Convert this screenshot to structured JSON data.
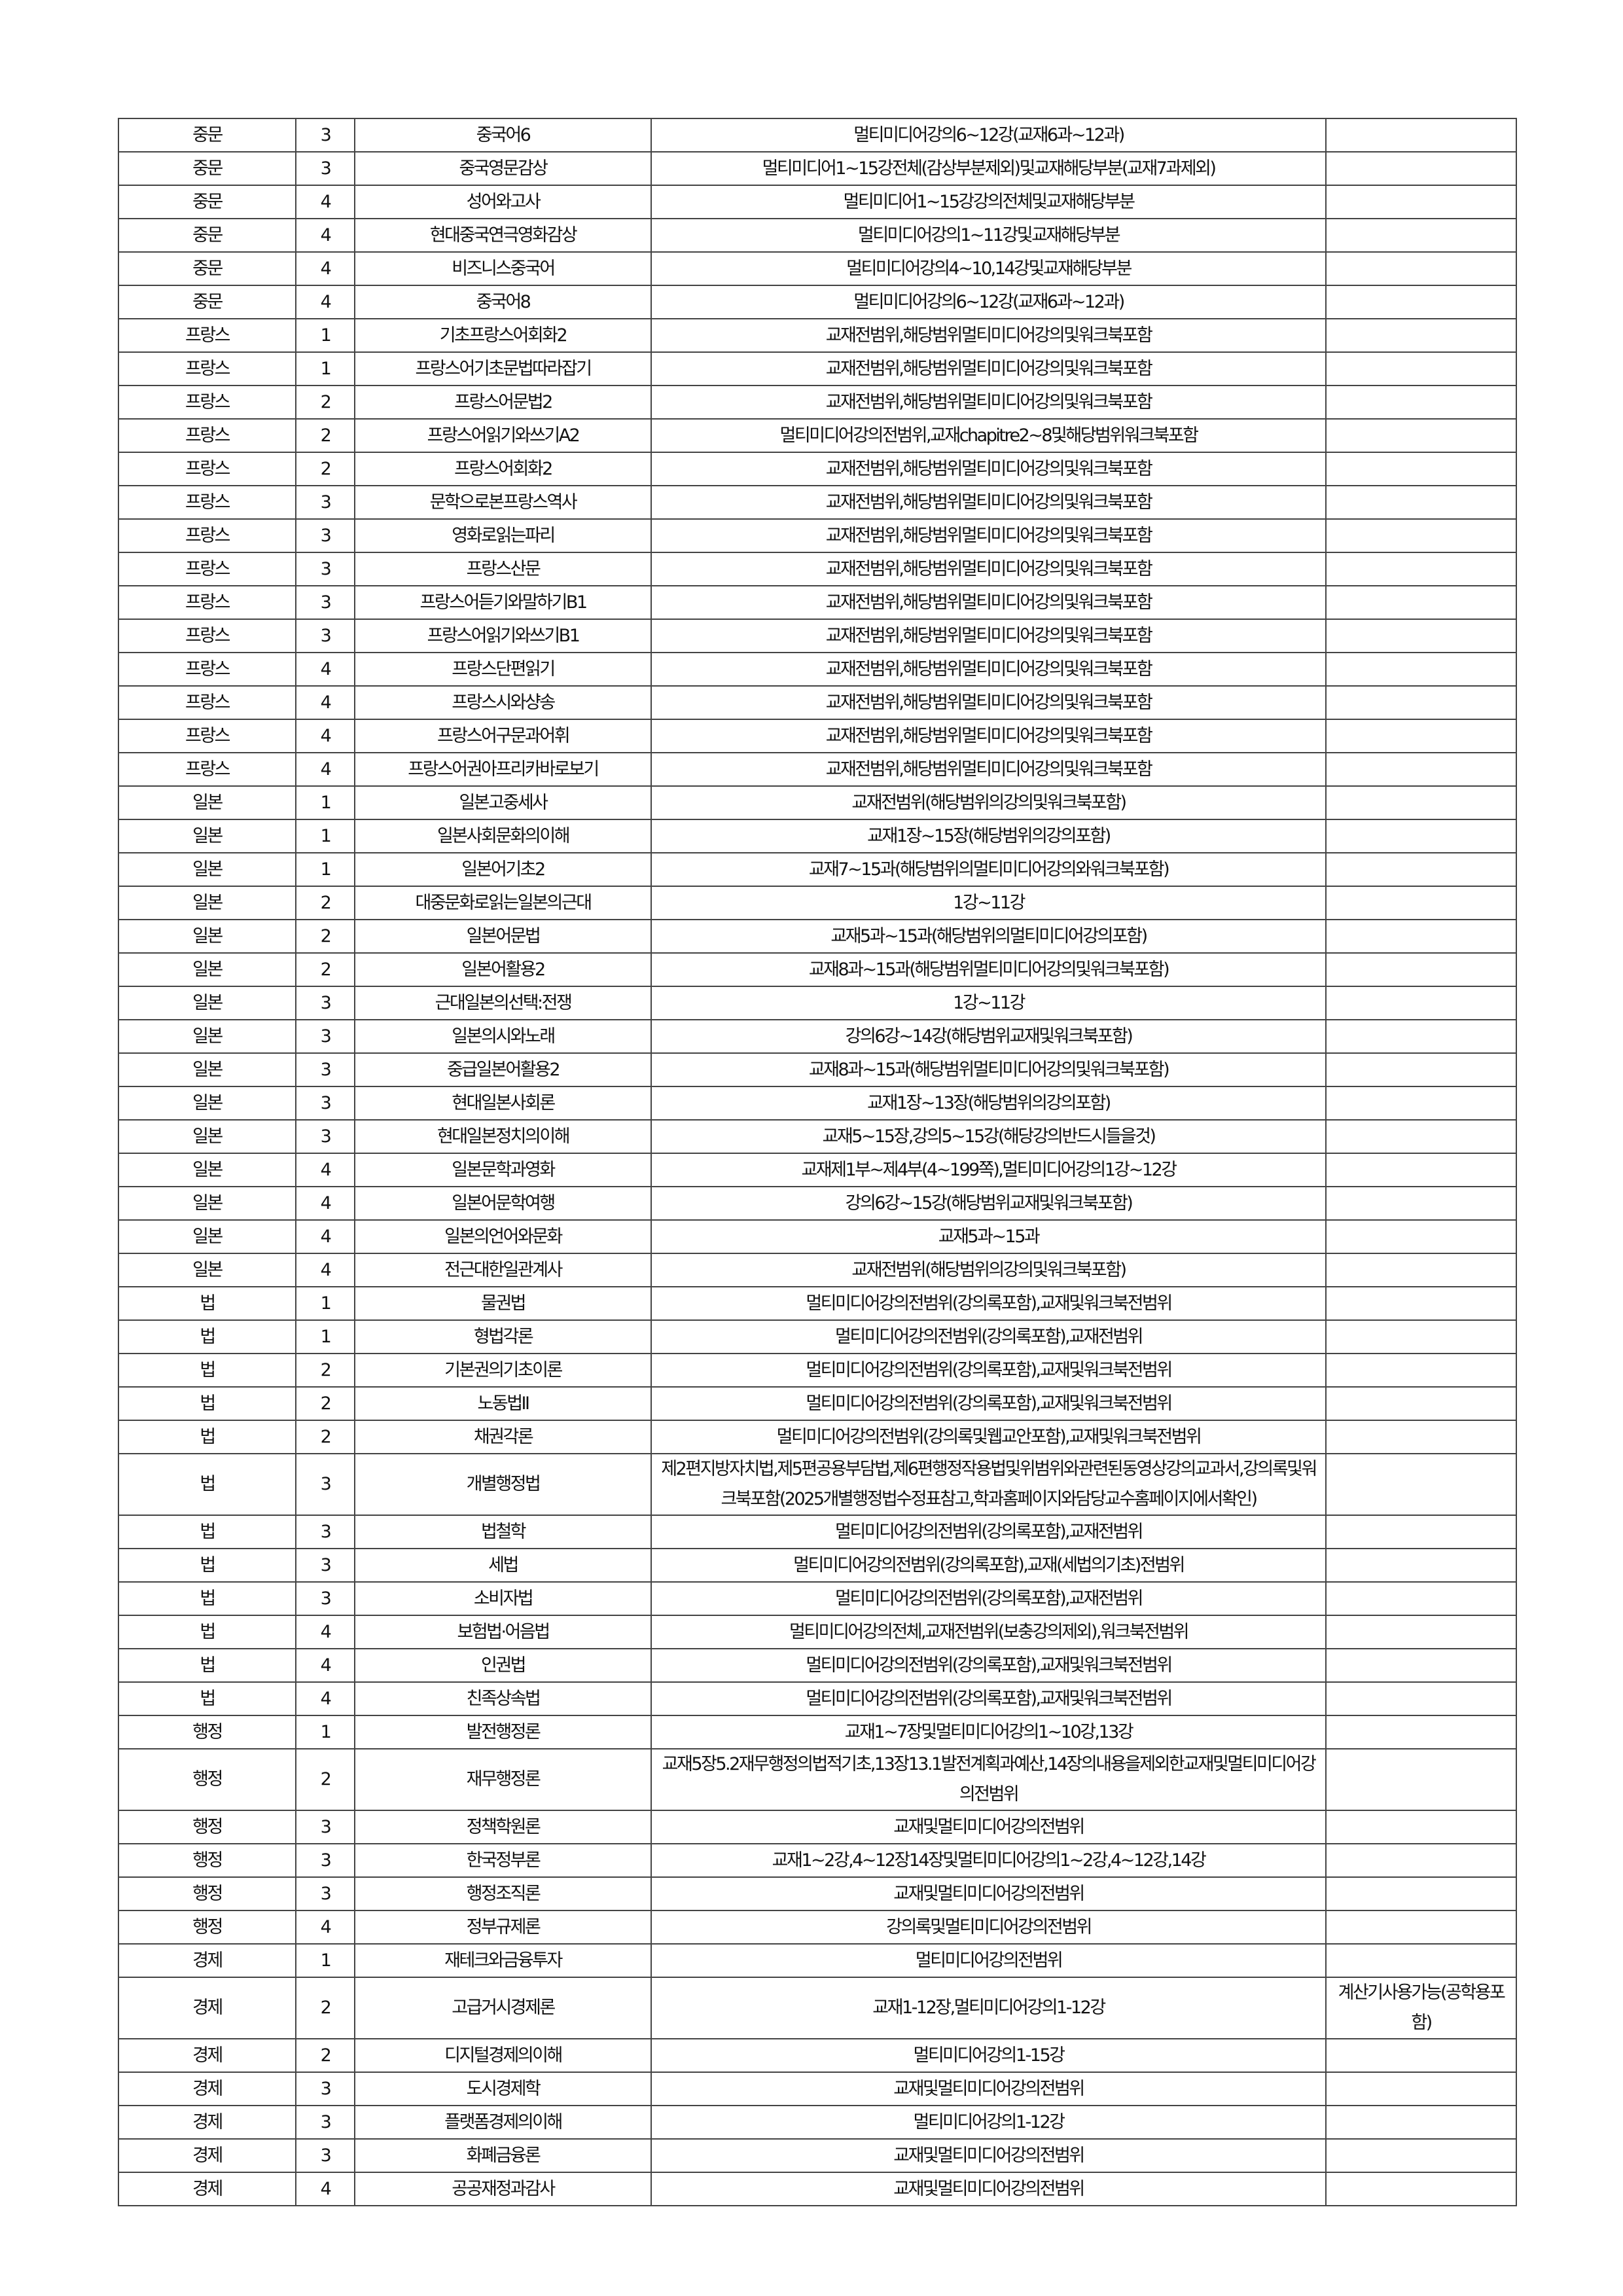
{
  "table": {
    "rows": [
      [
        "중문",
        "3",
        "중국어6",
        "멀티미디어강의6~12강(교재6과~12과)"
      ],
      [
        "중문",
        "3",
        "중국영문감상",
        "멀티미디어1~15강전체(감상부분제외)및교재해당부분(교재7과제외)"
      ],
      [
        "중문",
        "4",
        "성어와고사",
        "멀티미디어1~15강강의전체및교재해당부분"
      ],
      [
        "중문",
        "4",
        "현대중국연극영화감상",
        "멀티미디어강의1~11강및교재해당부분"
      ],
      [
        "중문",
        "4",
        "비즈니스중국어",
        "멀티미디어강의4~10,14강및교재해당부분"
      ],
      [
        "중문",
        "4",
        "중국어8",
        "멀티미디어강의6~12강(교재6과~12과)"
      ],
      [
        "프랑스",
        "1",
        "기초프랑스어회화2",
        "교재전범위,해당범위멀티미디어강의및워크북포함"
      ],
      [
        "프랑스",
        "1",
        "프랑스어기초문법따라잡기",
        "교재전범위,해당범위멀티미디어강의및워크북포함"
      ],
      [
        "프랑스",
        "2",
        "프랑스어문법2",
        "교재전범위,해당범위멀티미디어강의및워크북포함"
      ],
      [
        "프랑스",
        "2",
        "프랑스어읽기와쓰기A2",
        "멀티미디어강의전범위,교재chapitre2~8및해당범위워크북포함"
      ],
      [
        "프랑스",
        "2",
        "프랑스어회화2",
        "교재전범위,해당범위멀티미디어강의및워크북포함"
      ],
      [
        "프랑스",
        "3",
        "문학으로본프랑스역사",
        "교재전범위,해당범위멀티미디어강의및워크북포함"
      ],
      [
        "프랑스",
        "3",
        "영화로읽는파리",
        "교재전범위,해당범위멀티미디어강의및워크북포함"
      ],
      [
        "프랑스",
        "3",
        "프랑스산문",
        "교재전범위,해당범위멀티미디어강의및워크북포함"
      ],
      [
        "프랑스",
        "3",
        "프랑스어듣기와말하기B1",
        "교재전범위,해당범위멀티미디어강의및워크북포함"
      ],
      [
        "프랑스",
        "3",
        "프랑스어읽기와쓰기B1",
        "교재전범위,해당범위멀티미디어강의및워크북포함"
      ],
      [
        "프랑스",
        "4",
        "프랑스단편읽기",
        "교재전범위,해당범위멀티미디어강의및워크북포함"
      ],
      [
        "프랑스",
        "4",
        "프랑스시와샹송",
        "교재전범위,해당범위멀티미디어강의및워크북포함"
      ],
      [
        "프랑스",
        "4",
        "프랑스어구문과어휘",
        "교재전범위,해당범위멀티미디어강의및워크북포함"
      ],
      [
        "프랑스",
        "4",
        "프랑스어권아프리카바로보기",
        "교재전범위,해당범위멀티미디어강의및워크북포함"
      ],
      [
        "일본",
        "1",
        "일본고중세사",
        "교재전범위(해당범위의강의및워크북포함)"
      ],
      [
        "일본",
        "1",
        "일본사회문화의이해",
        "교재1장~15장(해당범위의강의포함)"
      ],
      [
        "일본",
        "1",
        "일본어기초2",
        "교재7~15과(해당범위의멀티미디어강의와워크북포함)"
      ],
      [
        "일본",
        "2",
        "대중문화로읽는일본의근대",
        "1강~11강"
      ],
      [
        "일본",
        "2",
        "일본어문법",
        "교재5과~15과(해당범위의멀티미디어강의포함)"
      ],
      [
        "일본",
        "2",
        "일본어활용2",
        "교재8과~15과(해당범위멀티미디어강의및워크북포함)"
      ],
      [
        "일본",
        "3",
        "근대일본의선택:전쟁",
        "1강~11강"
      ],
      [
        "일본",
        "3",
        "일본의시와노래",
        "강의6강~14강(해당범위교재및워크북포함)"
      ],
      [
        "일본",
        "3",
        "중급일본어활용2",
        "교재8과~15과(해당범위멀티미디어강의및워크북포함)"
      ],
      [
        "일본",
        "3",
        "현대일본사회론",
        "교재1장~13장(해당범위의강의포함)"
      ],
      [
        "일본",
        "3",
        "현대일본정치의이해",
        "교재5~15장,강의5~15강(해당강의반드시들을것)"
      ],
      [
        "일본",
        "4",
        "일본문학과영화",
        "교재제1부~제4부(4~199쪽),멀티미디어강의1강~12강"
      ],
      [
        "일본",
        "4",
        "일본어문학여행",
        "강의6강~15강(해당범위교재및워크북포함)"
      ],
      [
        "일본",
        "4",
        "일본의언어와문화",
        "교재5과~15과"
      ],
      [
        "일본",
        "4",
        "전근대한일관계사",
        "교재전범위(해당범위의강의및워크북포함)"
      ],
      [
        "법",
        "1",
        "물권법",
        "멀티미디어강의전범위(강의록포함),교재및워크북전범위"
      ],
      [
        "법",
        "1",
        "형법각론",
        "멀티미디어강의전범위(강의록포함),교재전범위"
      ],
      [
        "법",
        "2",
        "기본권의기초이론",
        "멀티미디어강의전범위(강의록포함),교재및워크북전범위"
      ],
      [
        "법",
        "2",
        "노동법II",
        "멀티미디어강의전범위(강의록포함),교재및워크북전범위"
      ],
      [
        "법",
        "2",
        "채권각론",
        "멀티미디어강의전범위(강의록및웹교안포함),교재및워크북전범위"
      ],
      [
        "법",
        "3",
        "개별행정법",
        "제2편지방자치법,제5편공용부담법,제6편행정작용법및위범위와관련된동영상강의교과서,강의록및워크북포함(2025개별행정법수정표참고,학과홈페이지와담당교수홈페이지에서확인)"
      ],
      [
        "법",
        "3",
        "법철학",
        "멀티미디어강의전범위(강의록포함),교재전범위"
      ],
      [
        "법",
        "3",
        "세법",
        "멀티미디어강의전범위(강의록포함),교재(세법의기초)전범위"
      ],
      [
        "법",
        "3",
        "소비자법",
        "멀티미디어강의전범위(강의록포함),교재전범위"
      ],
      [
        "법",
        "4",
        "보험법·어음법",
        "멀티미디어강의전체,교재전범위(보충강의제외),워크북전범위"
      ],
      [
        "법",
        "4",
        "인권법",
        "멀티미디어강의전범위(강의록포함),교재및워크북전범위"
      ],
      [
        "법",
        "4",
        "친족상속법",
        "멀티미디어강의전범위(강의록포함),교재및워크북전범위"
      ],
      [
        "행정",
        "1",
        "발전행정론",
        "교재1~7장및멀티미디어강의1~10강,13강"
      ],
      [
        "행정",
        "2",
        "재무행정론",
        "교재5장5.2재무행정의법적기초,13장13.1발전계획과예산,14장의내용을제외한교재및멀티미디어강의전범위"
      ],
      [
        "행정",
        "3",
        "정책학원론",
        "교재및멀티미디어강의전범위"
      ],
      [
        "행정",
        "3",
        "한국정부론",
        "교재1~2강,4~12장14장및멀티미디어강의1~2강,4~12강,14강"
      ],
      [
        "행정",
        "3",
        "행정조직론",
        "교재및멀티미디어강의전범위"
      ],
      [
        "행정",
        "4",
        "정부규제론",
        "강의록및멀티미디어강의전범위"
      ],
      [
        "경제",
        "1",
        "재테크와금융투자",
        "멀티미디어강의전범위"
      ],
      [
        "경제",
        "2",
        "고급거시경제론",
        "교재1-12장,멀티미디어강의1-12강",
        "계산기사용가능(공학용포함)"
      ],
      [
        "경제",
        "2",
        "디지털경제의이해",
        "멀티미디어강의1-15강"
      ],
      [
        "경제",
        "3",
        "도시경제학",
        "교재및멀티미디어강의전범위"
      ],
      [
        "경제",
        "3",
        "플랫폼경제의이해",
        "멀티미디어강의1-12강"
      ],
      [
        "경제",
        "3",
        "화폐금융론",
        "교재및멀티미디어강의전범위"
      ],
      [
        "경제",
        "4",
        "공공재정과감사",
        "교재및멀티미디어강의전범위"
      ]
    ]
  }
}
